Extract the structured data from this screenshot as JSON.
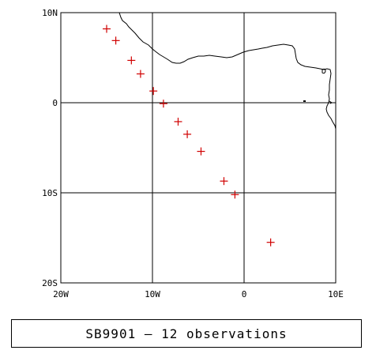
{
  "map": {
    "lon_range": [
      -20,
      10
    ],
    "lat_range": [
      -20,
      10
    ],
    "x_ticks": [
      {
        "value": -20,
        "label": "20W"
      },
      {
        "value": -10,
        "label": "10W"
      },
      {
        "value": 0,
        "label": "0"
      },
      {
        "value": 10,
        "label": "10E"
      }
    ],
    "y_ticks": [
      {
        "value": 10,
        "label": "10N"
      },
      {
        "value": 0,
        "label": "0"
      },
      {
        "value": -10,
        "label": "10S"
      },
      {
        "value": -20,
        "label": "20S"
      }
    ],
    "gridlines": [
      -10,
      0
    ],
    "marker_color": "#d00000",
    "coast_color": "#000000"
  },
  "chart_data": {
    "type": "scatter",
    "series": [
      {
        "points": [
          {
            "lon": -15.0,
            "lat": 8.2
          },
          {
            "lon": -14.0,
            "lat": 6.9
          },
          {
            "lon": -12.3,
            "lat": 4.7
          },
          {
            "lon": -11.3,
            "lat": 3.2
          },
          {
            "lon": -9.9,
            "lat": 1.3
          },
          {
            "lon": -8.8,
            "lat": -0.1
          },
          {
            "lon": -7.2,
            "lat": -2.1
          },
          {
            "lon": -6.2,
            "lat": -3.5
          },
          {
            "lon": -4.7,
            "lat": -5.4
          },
          {
            "lon": -2.2,
            "lat": -8.7
          },
          {
            "lon": -1.0,
            "lat": -10.2
          },
          {
            "lon": 2.9,
            "lat": -15.5
          }
        ]
      }
    ]
  },
  "caption": {
    "text": "SB9901 – 12 observations"
  }
}
